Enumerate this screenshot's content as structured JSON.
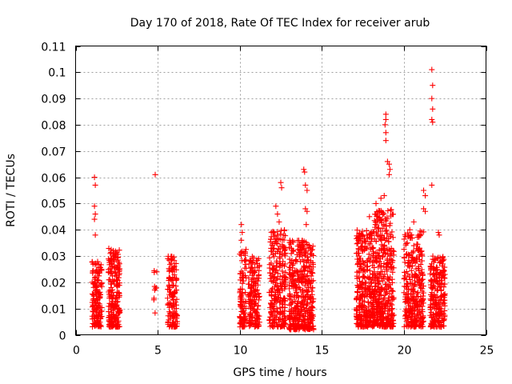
{
  "chart_data": {
    "type": "scatter",
    "title": "Day 170 of 2018, Rate Of TEC Index for receiver arub",
    "xlabel": "GPS time / hours",
    "ylabel": "ROTI / TECUs",
    "xlim": [
      0,
      25
    ],
    "ylim": [
      0,
      0.11
    ],
    "xticks": [
      "0",
      "5",
      "10",
      "15",
      "20",
      "25"
    ],
    "yticks": [
      "0",
      "0.01",
      "0.02",
      "0.03",
      "0.04",
      "0.05",
      "0.06",
      "0.07",
      "0.08",
      "0.09",
      "0.1",
      "0.11"
    ],
    "grid": true,
    "marker": "+",
    "color": "#ff0000",
    "clusters": [
      {
        "x_range": [
          1.0,
          1.6
        ],
        "y_range": [
          0.003,
          0.028
        ],
        "count": 160
      },
      {
        "x_range": [
          2.0,
          2.7
        ],
        "y_range": [
          0.003,
          0.033
        ],
        "count": 220
      },
      {
        "x_range": [
          4.75,
          4.95
        ],
        "y_range": [
          0.005,
          0.027
        ],
        "count": 10
      },
      {
        "x_range": [
          5.6,
          6.2
        ],
        "y_range": [
          0.003,
          0.03
        ],
        "count": 130
      },
      {
        "x_range": [
          10.0,
          10.4
        ],
        "y_range": [
          0.003,
          0.033
        ],
        "count": 100
      },
      {
        "x_range": [
          10.5,
          11.2
        ],
        "y_range": [
          0.003,
          0.03
        ],
        "count": 160
      },
      {
        "x_range": [
          11.8,
          12.8
        ],
        "y_range": [
          0.003,
          0.04
        ],
        "count": 260
      },
      {
        "x_range": [
          13.0,
          14.5
        ],
        "y_range": [
          0.002,
          0.036
        ],
        "count": 420
      },
      {
        "x_range": [
          17.1,
          18.2
        ],
        "y_range": [
          0.003,
          0.04
        ],
        "count": 330
      },
      {
        "x_range": [
          18.2,
          19.4
        ],
        "y_range": [
          0.003,
          0.048
        ],
        "count": 380
      },
      {
        "x_range": [
          20.0,
          21.2
        ],
        "y_range": [
          0.003,
          0.04
        ],
        "count": 320
      },
      {
        "x_range": [
          21.6,
          22.5
        ],
        "y_range": [
          0.003,
          0.03
        ],
        "count": 240
      }
    ],
    "points": [
      [
        1.15,
        0.06
      ],
      [
        1.2,
        0.057
      ],
      [
        1.15,
        0.049
      ],
      [
        1.2,
        0.046
      ],
      [
        1.15,
        0.044
      ],
      [
        1.2,
        0.038
      ],
      [
        4.85,
        0.061
      ],
      [
        10.1,
        0.042
      ],
      [
        10.15,
        0.039
      ],
      [
        10.1,
        0.036
      ],
      [
        12.2,
        0.049
      ],
      [
        12.3,
        0.046
      ],
      [
        12.5,
        0.058
      ],
      [
        12.55,
        0.056
      ],
      [
        12.4,
        0.043
      ],
      [
        13.9,
        0.063
      ],
      [
        13.95,
        0.062
      ],
      [
        14.0,
        0.057
      ],
      [
        14.1,
        0.055
      ],
      [
        14.0,
        0.048
      ],
      [
        14.1,
        0.047
      ],
      [
        14.05,
        0.042
      ],
      [
        17.9,
        0.045
      ],
      [
        18.3,
        0.05
      ],
      [
        18.6,
        0.052
      ],
      [
        18.8,
        0.053
      ],
      [
        18.9,
        0.084
      ],
      [
        18.9,
        0.082
      ],
      [
        18.85,
        0.08
      ],
      [
        18.9,
        0.077
      ],
      [
        18.9,
        0.074
      ],
      [
        19.0,
        0.066
      ],
      [
        19.1,
        0.065
      ],
      [
        19.15,
        0.063
      ],
      [
        19.1,
        0.061
      ],
      [
        20.6,
        0.043
      ],
      [
        21.2,
        0.055
      ],
      [
        21.3,
        0.053
      ],
      [
        21.2,
        0.048
      ],
      [
        21.3,
        0.047
      ],
      [
        21.7,
        0.101
      ],
      [
        21.75,
        0.095
      ],
      [
        21.7,
        0.09
      ],
      [
        21.75,
        0.086
      ],
      [
        21.7,
        0.082
      ],
      [
        21.75,
        0.081
      ],
      [
        21.7,
        0.057
      ],
      [
        22.1,
        0.039
      ],
      [
        22.15,
        0.038
      ]
    ]
  }
}
